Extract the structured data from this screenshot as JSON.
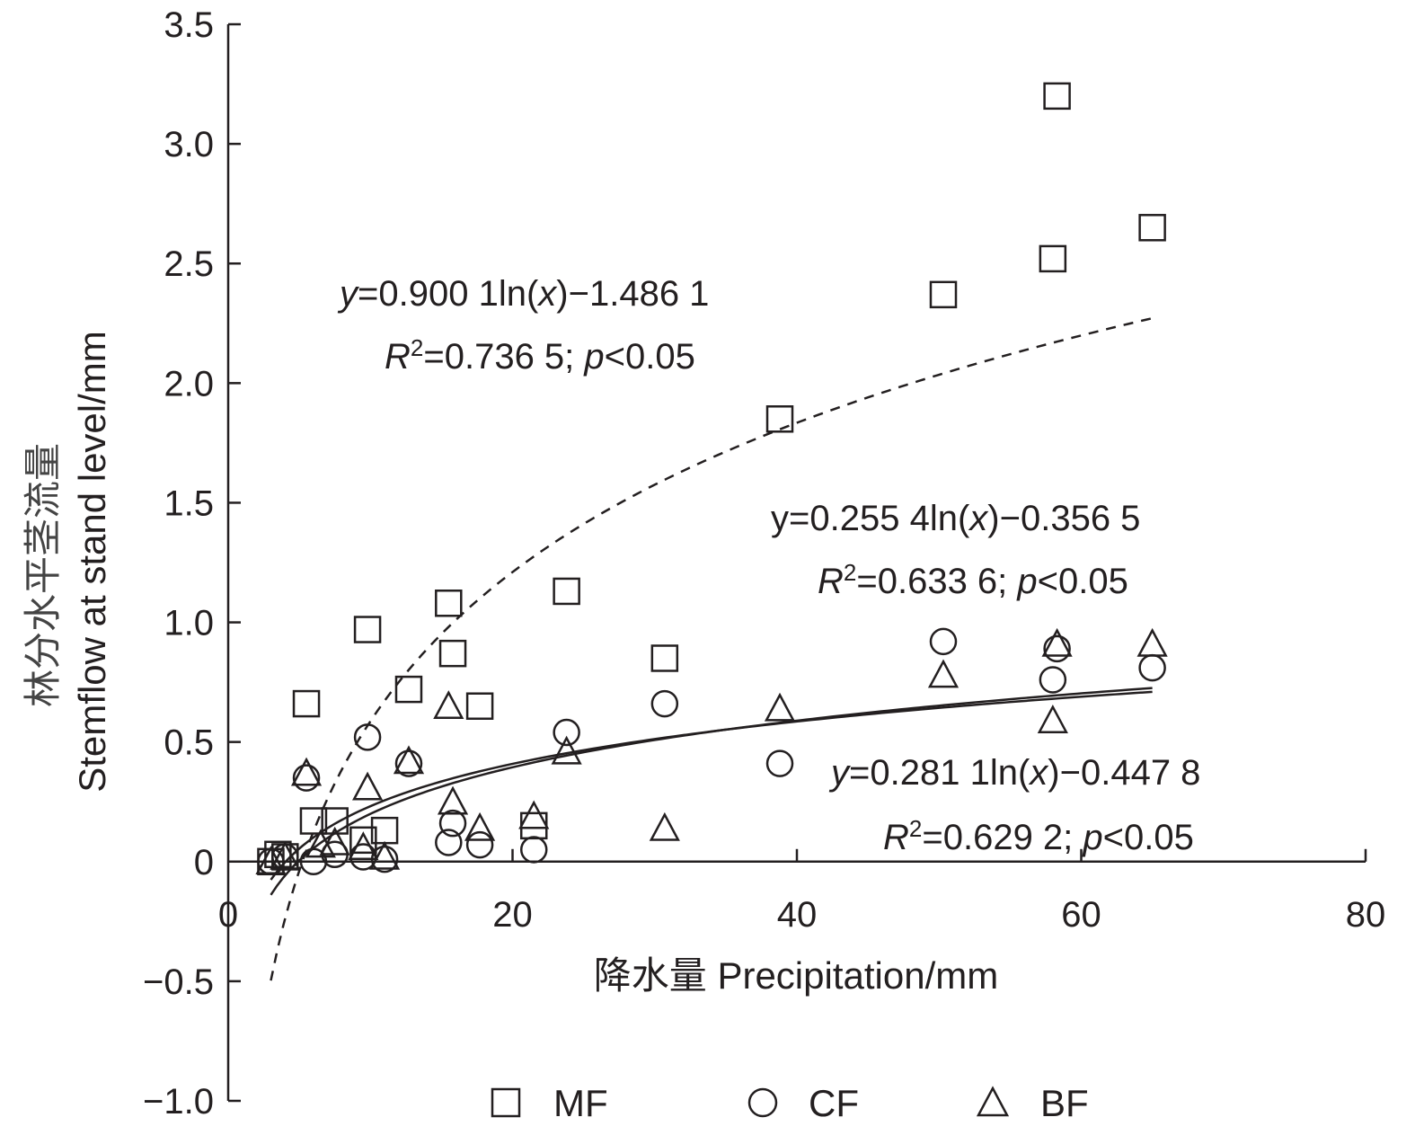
{
  "chart_data": {
    "type": "scatter",
    "xlabel": "降水量 Precipitation/mm",
    "ylabel_cn": "林分水平茎流量",
    "ylabel_en": "Stemflow at stand level/mm",
    "xlim": [
      0,
      80
    ],
    "ylim": [
      -1.0,
      3.5
    ],
    "x_ticks": [
      0,
      20,
      40,
      60,
      80
    ],
    "x_tick_labels": [
      "0",
      "20",
      "40",
      "60",
      "80"
    ],
    "y_ticks": [
      -1.0,
      -0.5,
      0,
      0.5,
      1.0,
      1.5,
      2.0,
      2.5,
      3.0,
      3.5
    ],
    "y_tick_labels": [
      "−1.0",
      "−0.5",
      "0",
      "0.5",
      "1.0",
      "1.5",
      "2.0",
      "2.5",
      "3.0",
      "3.5"
    ],
    "grid": false,
    "legend_position": "bottom",
    "series": [
      {
        "name": "MF",
        "marker": "square",
        "x": [
          3.0,
          3.5,
          4.0,
          5.5,
          6.0,
          7.5,
          9.5,
          9.8,
          11.0,
          12.7,
          15.5,
          15.8,
          17.7,
          21.5,
          23.8,
          30.7,
          38.8,
          50.3,
          58.0,
          58.3,
          65.0
        ],
        "y": [
          0.0,
          0.03,
          0.02,
          0.66,
          0.17,
          0.17,
          0.09,
          0.97,
          0.13,
          0.72,
          1.08,
          0.87,
          0.65,
          0.15,
          1.13,
          0.85,
          1.85,
          2.37,
          2.52,
          3.2,
          2.65
        ]
      },
      {
        "name": "CF",
        "marker": "circle",
        "x": [
          3.0,
          4.0,
          5.5,
          6.0,
          7.5,
          9.5,
          9.8,
          11.0,
          12.7,
          15.5,
          15.8,
          17.7,
          21.5,
          23.8,
          30.7,
          38.8,
          50.3,
          58.0,
          58.3,
          65.0
        ],
        "y": [
          0.0,
          0.02,
          0.35,
          0.0,
          0.03,
          0.02,
          0.52,
          0.01,
          0.41,
          0.08,
          0.16,
          0.07,
          0.05,
          0.54,
          0.66,
          0.41,
          0.92,
          0.76,
          0.89,
          0.81
        ]
      },
      {
        "name": "BF",
        "marker": "triangle",
        "x": [
          3.0,
          4.0,
          5.5,
          6.5,
          7.5,
          9.5,
          9.8,
          11.0,
          12.7,
          15.5,
          15.8,
          17.7,
          21.5,
          23.8,
          30.7,
          38.8,
          50.3,
          58.0,
          58.3,
          65.0
        ],
        "y": [
          0.0,
          0.02,
          0.37,
          0.07,
          0.08,
          0.06,
          0.31,
          0.02,
          0.42,
          0.65,
          0.25,
          0.14,
          0.19,
          0.46,
          0.14,
          0.64,
          0.78,
          0.59,
          0.91,
          0.91
        ]
      }
    ],
    "fits": [
      {
        "series": "MF",
        "a": 0.9001,
        "b": -1.4861,
        "x_range": [
          3,
          65
        ],
        "style": "dashed",
        "equation_parts": [
          "y",
          "=0.900 1ln(",
          "x",
          ")−1.486 1"
        ],
        "r2_parts": [
          "R",
          "2",
          "=0.736 5; ",
          "p",
          "<0.05"
        ]
      },
      {
        "series": "CF",
        "a": 0.2554,
        "b": -0.3565,
        "x_range": [
          3,
          65
        ],
        "style": "solid",
        "equation_parts": [
          "y=0.255 4ln(",
          "x",
          ")−0.356 5"
        ],
        "r2_parts": [
          "R",
          "2",
          "=0.633 6; ",
          "p",
          "<0.05"
        ]
      },
      {
        "series": "BF",
        "a": 0.2811,
        "b": -0.4478,
        "x_range": [
          3,
          65
        ],
        "style": "solid",
        "equation_parts": [
          "y",
          "=0.281 1ln(",
          "x",
          ")−0.447 8"
        ],
        "r2_parts": [
          "R",
          "2",
          "=0.629 2; ",
          "p",
          "<0.05"
        ]
      }
    ]
  },
  "colors": {
    "ink": "#231f20",
    "background": "#ffffff"
  }
}
